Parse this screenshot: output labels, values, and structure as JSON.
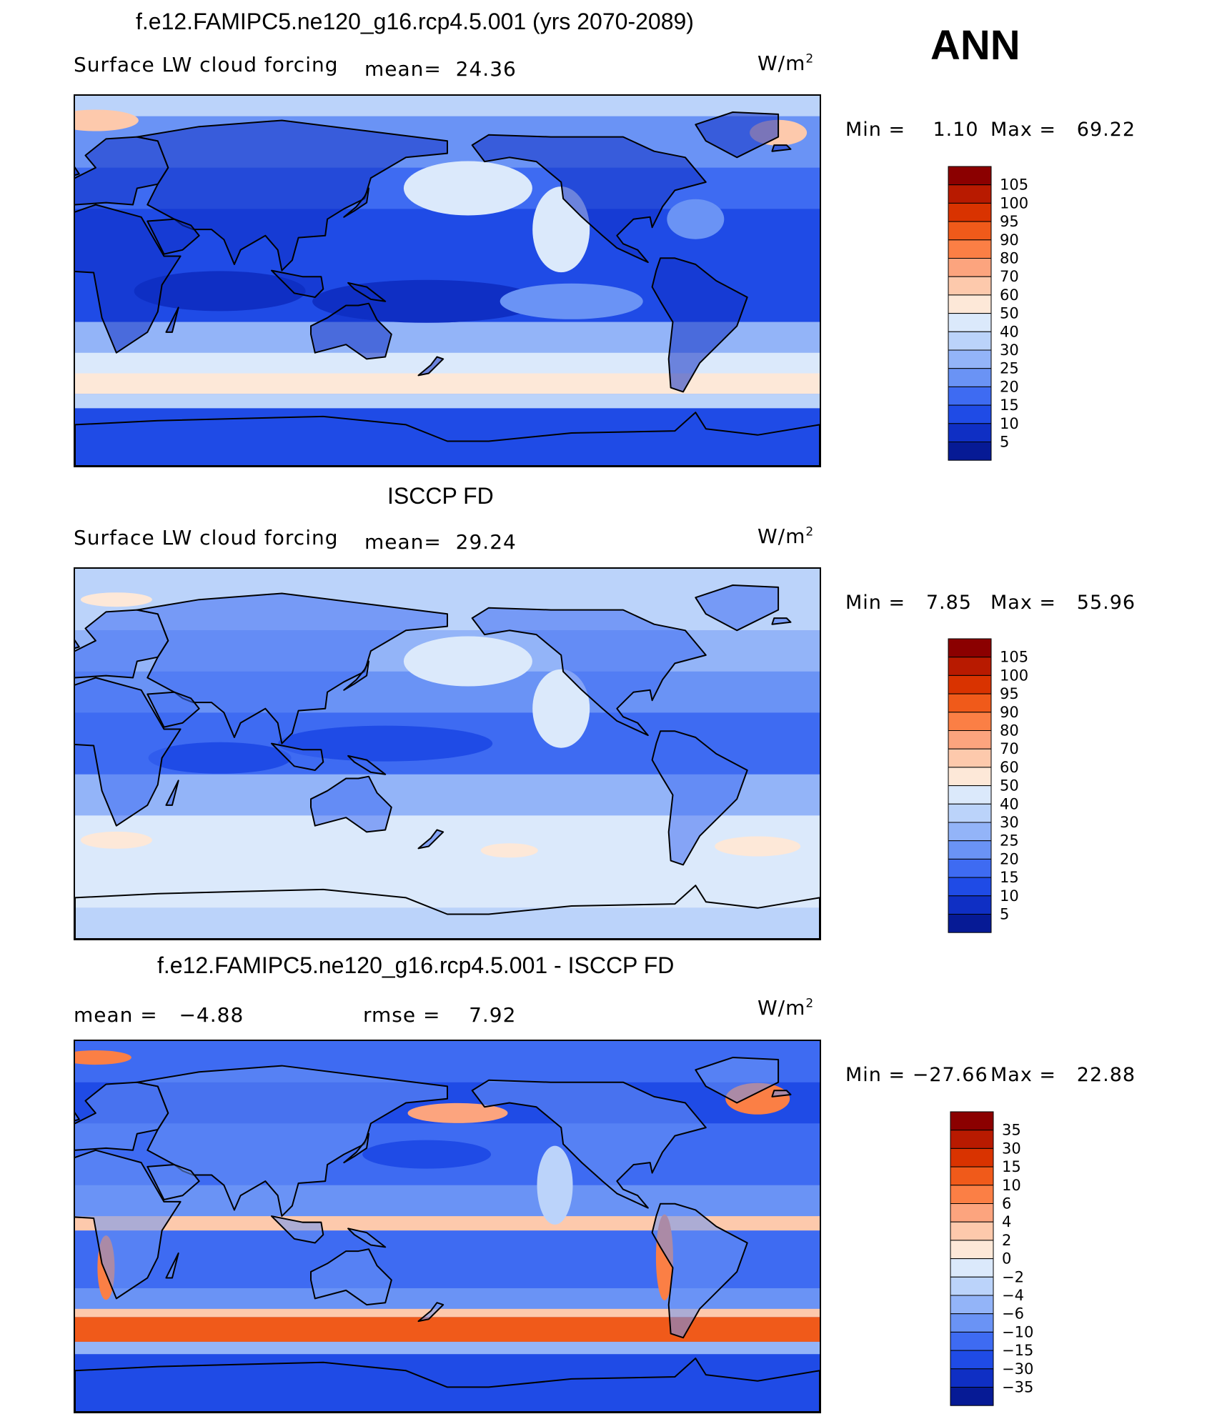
{
  "annual_label": "ANN",
  "panels": [
    {
      "title": "f.e12.FAMIPC5.ne120_g16.rcp4.5.001 (yrs 2070-2089)",
      "variable": "Surface LW cloud forcing",
      "stat1": "mean=  24.36",
      "stat2": "",
      "units": "W/m",
      "units_exp": "2",
      "min_text": "Min =    1.10",
      "max_text": "Max =   69.22",
      "colorbar_labels": [
        "105",
        "100",
        "95",
        "90",
        "80",
        "70",
        "60",
        "50",
        "40",
        "30",
        "25",
        "20",
        "15",
        "10",
        "5"
      ],
      "colorbar_colors": [
        "#8b0000",
        "#b81a00",
        "#d93300",
        "#f05a1a",
        "#fb7f45",
        "#fca47e",
        "#fdc9ac",
        "#fde8d8",
        "#dbe9fb",
        "#bbd3fa",
        "#93b4f8",
        "#6a93f5",
        "#3e6bf2",
        "#1f4be6",
        "#0f2fc4",
        "#061a95"
      ],
      "palette": "model"
    },
    {
      "title": "ISCCP FD",
      "variable": "Surface LW cloud forcing",
      "stat1": "mean=  29.24",
      "stat2": "",
      "units": "W/m",
      "units_exp": "2",
      "min_text": "Min =   7.85",
      "max_text": "Max =   55.96",
      "colorbar_labels": [
        "105",
        "100",
        "95",
        "90",
        "80",
        "70",
        "60",
        "50",
        "40",
        "30",
        "25",
        "20",
        "15",
        "10",
        "5"
      ],
      "colorbar_colors": [
        "#8b0000",
        "#b81a00",
        "#d93300",
        "#f05a1a",
        "#fb7f45",
        "#fca47e",
        "#fdc9ac",
        "#fde8d8",
        "#dbe9fb",
        "#bbd3fa",
        "#93b4f8",
        "#6a93f5",
        "#3e6bf2",
        "#1f4be6",
        "#0f2fc4",
        "#061a95"
      ],
      "palette": "obs"
    },
    {
      "title": "f.e12.FAMIPC5.ne120_g16.rcp4.5.001 - ISCCP FD",
      "variable": "",
      "stat1": "mean =   −4.88",
      "stat2": "rmse =    7.92",
      "units": "W/m",
      "units_exp": "2",
      "min_text": "Min = −27.66",
      "max_text": "Max =   22.88",
      "colorbar_labels": [
        "35",
        "30",
        "15",
        "10",
        "6",
        "4",
        "2",
        "0",
        "−2",
        "−4",
        "−6",
        "−10",
        "−15",
        "−30",
        "−35"
      ],
      "colorbar_colors": [
        "#8b0000",
        "#b81a00",
        "#d93300",
        "#f05a1a",
        "#fb7f45",
        "#fca47e",
        "#fdc9ac",
        "#fde8d8",
        "#dbe9fb",
        "#bbd3fa",
        "#93b4f8",
        "#6a93f5",
        "#3e6bf2",
        "#1f4be6",
        "#0f2fc4",
        "#061a95"
      ],
      "palette": "diff"
    }
  ]
}
